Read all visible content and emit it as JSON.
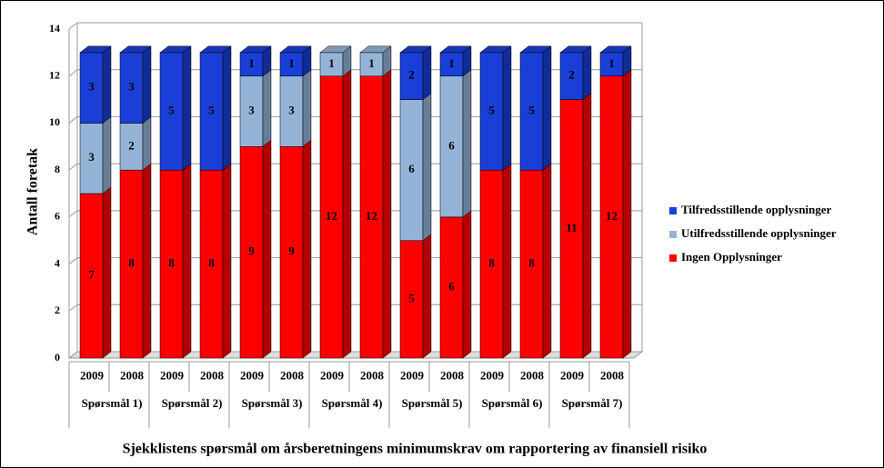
{
  "chart_data": {
    "type": "stacked-bar-3d",
    "title": "Sjekklistens spørsmål om årsberetningens minimumskrav om rapportering av finansiell risiko",
    "y_label": "Antall foretak",
    "categories": [
      "2009",
      "2008",
      "2009",
      "2008",
      "2009",
      "2008",
      "2009",
      "2008",
      "2009",
      "2008",
      "2009",
      "2008",
      "2009",
      "2008"
    ],
    "groups": [
      "Spørsmål 1)",
      "Spørsmål 2)",
      "Spørsmål 3)",
      "Spørsmål 4)",
      "Spørsmål 5)",
      "Spørsmål 6)",
      "Spørsmål 7)"
    ],
    "series": [
      {
        "name": "Ingen Opplysninger",
        "color": "#ff0000",
        "values": [
          7,
          8,
          8,
          8,
          9,
          9,
          12,
          12,
          5,
          6,
          8,
          8,
          11,
          12
        ]
      },
      {
        "name": "Utilfredsstillende opplysninger",
        "color": "#95b3d7",
        "values": [
          3,
          2,
          null,
          null,
          3,
          3,
          1,
          1,
          6,
          6,
          null,
          null,
          null,
          null
        ]
      },
      {
        "name": "Tilfredsstillende opplysninger",
        "color": "#1a3fd6",
        "values": [
          3,
          3,
          5,
          5,
          1,
          1,
          null,
          null,
          2,
          1,
          5,
          5,
          2,
          1
        ]
      }
    ],
    "ylim": [
      0,
      14
    ],
    "yticks": [
      0,
      2,
      4,
      6,
      8,
      10,
      12,
      14
    ],
    "grid": true,
    "legend": "right"
  }
}
